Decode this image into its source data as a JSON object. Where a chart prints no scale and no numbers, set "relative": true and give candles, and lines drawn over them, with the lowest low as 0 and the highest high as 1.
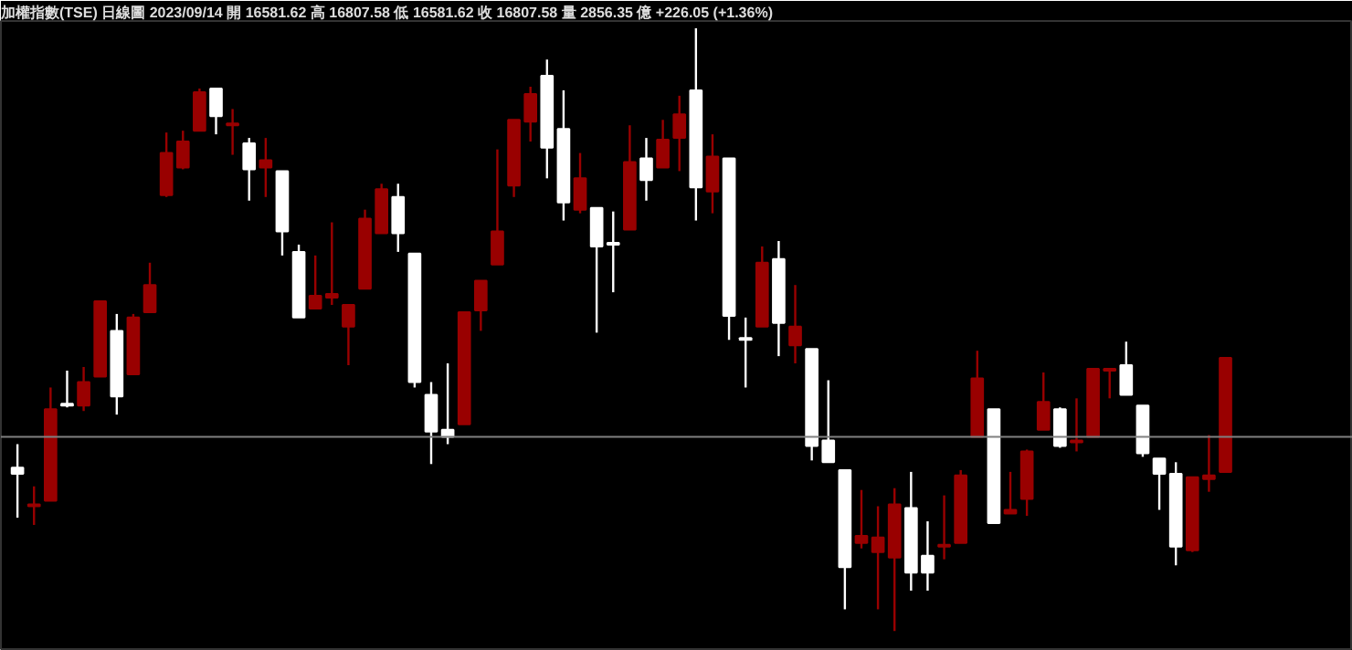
{
  "chart_data": {
    "type": "candlestick",
    "relative": true,
    "title": "加權指數(TSE)  日線圖  2023/09/14  開 16581.62  高 16807.58  低 16581.62  收 16807.58  量 2856.35 億  +226.05 (+1.36%)",
    "categories": [
      null,
      null,
      null,
      null,
      null,
      null,
      null,
      null,
      null,
      null,
      null,
      null,
      null,
      null,
      null,
      null,
      null,
      null,
      null,
      null,
      null,
      null,
      null,
      null,
      null,
      null,
      null,
      null,
      null,
      null,
      null,
      null,
      null,
      null,
      null,
      null,
      null,
      null,
      null,
      null,
      null,
      null,
      null,
      null,
      null,
      null,
      null,
      null,
      null,
      null,
      null,
      null,
      null,
      null,
      null,
      null,
      null,
      null,
      null,
      null,
      null,
      null,
      null,
      null,
      null,
      null,
      null,
      null,
      null,
      null,
      null,
      null,
      null,
      null
    ],
    "ohlc": [
      [
        0.271,
        0.31,
        0.188,
        0.261
      ],
      [
        0.207,
        0.24,
        0.176,
        0.21
      ],
      [
        0.216,
        0.404,
        0.216,
        0.368
      ],
      [
        0.377,
        0.432,
        0.371,
        0.374
      ],
      [
        0.374,
        0.438,
        0.365,
        0.413
      ],
      [
        0.422,
        0.547,
        0.422,
        0.547
      ],
      [
        0.498,
        0.526,
        0.359,
        0.389
      ],
      [
        0.426,
        0.526,
        0.426,
        0.52
      ],
      [
        0.529,
        0.611,
        0.529,
        0.574
      ],
      [
        0.723,
        0.827,
        0.72,
        0.793
      ],
      [
        0.769,
        0.83,
        0.766,
        0.812
      ],
      [
        0.83,
        0.9,
        0.83,
        0.894
      ],
      [
        0.9,
        0.9,
        0.824,
        0.854
      ],
      [
        0.839,
        0.866,
        0.79,
        0.842
      ],
      [
        0.809,
        0.818,
        0.714,
        0.766
      ],
      [
        0.769,
        0.818,
        0.72,
        0.781
      ],
      [
        0.763,
        0.763,
        0.623,
        0.663
      ],
      [
        0.629,
        0.641,
        0.52,
        0.52
      ],
      [
        0.535,
        0.623,
        0.535,
        0.556
      ],
      [
        0.553,
        0.678,
        0.541,
        0.559
      ],
      [
        0.505,
        0.541,
        0.441,
        0.541
      ],
      [
        0.568,
        0.699,
        0.568,
        0.684
      ],
      [
        0.66,
        0.742,
        0.66,
        0.733
      ],
      [
        0.72,
        0.742,
        0.629,
        0.66
      ],
      [
        0.626,
        0.626,
        0.404,
        0.413
      ],
      [
        0.392,
        0.413,
        0.277,
        0.331
      ],
      [
        0.334,
        0.444,
        0.31,
        0.322
      ],
      [
        0.343,
        0.529,
        0.343,
        0.529
      ],
      [
        0.532,
        0.581,
        0.498,
        0.581
      ],
      [
        0.608,
        0.799,
        0.608,
        0.663
      ],
      [
        0.739,
        0.848,
        0.72,
        0.848
      ],
      [
        0.845,
        0.903,
        0.812,
        0.891
      ],
      [
        0.921,
        0.948,
        0.751,
        0.802
      ],
      [
        0.833,
        0.897,
        0.681,
        0.711
      ],
      [
        0.699,
        0.793,
        0.693,
        0.751
      ],
      [
        0.702,
        0.702,
        0.495,
        0.638
      ],
      [
        0.644,
        0.696,
        0.562,
        0.641
      ],
      [
        0.666,
        0.839,
        0.666,
        0.778
      ],
      [
        0.784,
        0.818,
        0.714,
        0.748
      ],
      [
        0.769,
        0.848,
        0.769,
        0.815
      ],
      [
        0.818,
        0.888,
        0.763,
        0.857
      ],
      [
        0.897,
        1.0,
        0.681,
        0.736
      ],
      [
        0.729,
        0.824,
        0.693,
        0.787
      ],
      [
        0.784,
        0.784,
        0.483,
        0.523
      ],
      [
        0.486,
        0.52,
        0.404,
        0.483
      ],
      [
        0.505,
        0.638,
        0.505,
        0.611
      ],
      [
        0.617,
        0.647,
        0.456,
        0.511
      ],
      [
        0.474,
        0.574,
        0.444,
        0.505
      ],
      [
        0.468,
        0.468,
        0.283,
        0.307
      ],
      [
        0.316,
        0.416,
        0.28,
        0.28
      ],
      [
        0.267,
        0.267,
        0.036,
        0.106
      ],
      [
        0.146,
        0.234,
        0.137,
        0.158
      ],
      [
        0.131,
        0.207,
        0.036,
        0.155
      ],
      [
        0.122,
        0.237,
        0.0,
        0.21
      ],
      [
        0.204,
        0.264,
        0.067,
        0.097
      ],
      [
        0.125,
        0.182,
        0.067,
        0.097
      ],
      [
        0.14,
        0.225,
        0.119,
        0.143
      ],
      [
        0.146,
        0.267,
        0.146,
        0.258
      ],
      [
        0.322,
        0.465,
        0.322,
        0.419
      ],
      [
        0.368,
        0.368,
        0.179,
        0.179
      ],
      [
        0.195,
        0.264,
        0.195,
        0.201
      ],
      [
        0.219,
        0.301,
        0.191,
        0.298
      ],
      [
        0.334,
        0.429,
        0.334,
        0.38
      ],
      [
        0.368,
        0.371,
        0.304,
        0.307
      ],
      [
        0.313,
        0.386,
        0.298,
        0.316
      ],
      [
        0.322,
        0.435,
        0.322,
        0.435
      ],
      [
        0.432,
        0.435,
        0.386,
        0.435
      ],
      [
        0.441,
        0.48,
        0.392,
        0.392
      ],
      [
        0.374,
        0.374,
        0.289,
        0.295
      ],
      [
        0.286,
        0.286,
        0.201,
        0.261
      ],
      [
        0.261,
        0.28,
        0.109,
        0.14
      ],
      [
        0.134,
        0.255,
        0.131,
        0.255
      ],
      [
        0.252,
        0.325,
        0.231,
        0.258
      ],
      [
        0.264,
        0.453,
        0.264,
        0.453
      ]
    ],
    "colors": [
      "#ffffff",
      "#990000",
      "#990000",
      "#ffffff",
      "#990000",
      "#990000",
      "#ffffff",
      "#990000",
      "#990000",
      "#990000",
      "#990000",
      "#990000",
      "#ffffff",
      "#990000",
      "#ffffff",
      "#990000",
      "#ffffff",
      "#ffffff",
      "#990000",
      "#990000",
      "#990000",
      "#990000",
      "#990000",
      "#ffffff",
      "#ffffff",
      "#ffffff",
      "#ffffff",
      "#990000",
      "#990000",
      "#990000",
      "#990000",
      "#990000",
      "#ffffff",
      "#ffffff",
      "#990000",
      "#ffffff",
      "#ffffff",
      "#990000",
      "#ffffff",
      "#990000",
      "#990000",
      "#ffffff",
      "#990000",
      "#ffffff",
      "#ffffff",
      "#990000",
      "#ffffff",
      "#990000",
      "#ffffff",
      "#ffffff",
      "#ffffff",
      "#990000",
      "#990000",
      "#990000",
      "#ffffff",
      "#ffffff",
      "#990000",
      "#990000",
      "#990000",
      "#ffffff",
      "#990000",
      "#990000",
      "#990000",
      "#ffffff",
      "#990000",
      "#990000",
      "#990000",
      "#ffffff",
      "#ffffff",
      "#ffffff",
      "#ffffff",
      "#990000",
      "#990000",
      "#990000"
    ],
    "ref_lines": [
      {
        "axis": "y",
        "value": 0.322,
        "color": "#808080"
      }
    ]
  }
}
